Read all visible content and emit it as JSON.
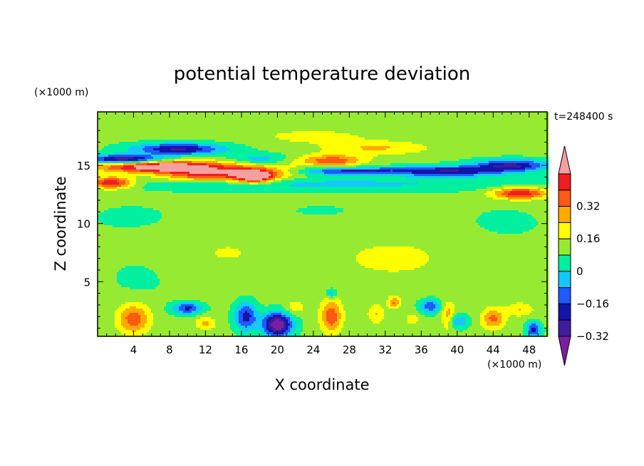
{
  "chart_data": {
    "type": "heatmap",
    "title": "potential temperature deviation",
    "xlabel": "X coordinate",
    "ylabel": "Z coordinate",
    "x_unit": "(×1000 m)",
    "y_unit": "(×1000 m)",
    "time_label": "t=248400 s",
    "xlim": [
      0,
      50
    ],
    "ylim": [
      0.3,
      19.6
    ],
    "x_ticks": [
      4,
      8,
      12,
      16,
      20,
      24,
      28,
      32,
      36,
      40,
      44,
      48
    ],
    "y_ticks": [
      5,
      10,
      15
    ],
    "colorbar": {
      "ticks": [
        "0.32",
        "0.16",
        "0",
        "−0.16",
        "−0.32"
      ],
      "levels": [
        {
          "color": "#7b1fa2"
        },
        {
          "color": "#3f1d9e"
        },
        {
          "color": "#1414a8"
        },
        {
          "color": "#1e5aff"
        },
        {
          "color": "#14c8ff"
        },
        {
          "color": "#00f0a0"
        },
        {
          "color": "#96eb32"
        },
        {
          "color": "#ffff00"
        },
        {
          "color": "#ffaa00"
        },
        {
          "color": "#ff5a14"
        },
        {
          "color": "#f01e1e"
        },
        {
          "color": "#f5a0a0"
        }
      ]
    },
    "background": 0.02,
    "features": [
      {
        "x": 7,
        "z": 14.9,
        "sx": 7,
        "sz": 0.5,
        "v": 0.5
      },
      {
        "x": 1.5,
        "z": 13.5,
        "sx": 2.5,
        "sz": 0.5,
        "v": 0.4
      },
      {
        "x": 12,
        "z": 14.2,
        "sx": 5,
        "sz": 0.6,
        "v": 0.3
      },
      {
        "x": 17.5,
        "z": 14.0,
        "sx": 2,
        "sz": 0.5,
        "v": 0.42
      },
      {
        "x": 18,
        "z": 14.4,
        "sx": 4.5,
        "sz": 0.7,
        "v": 0.22
      },
      {
        "x": 26,
        "z": 15.4,
        "sx": 3.5,
        "sz": 0.5,
        "v": 0.28
      },
      {
        "x": 31,
        "z": 16.5,
        "sx": 6,
        "sz": 0.6,
        "v": 0.15
      },
      {
        "x": 24,
        "z": 17.5,
        "sx": 6,
        "sz": 0.6,
        "v": 0.1
      },
      {
        "x": 47,
        "z": 12.6,
        "sx": 3,
        "sz": 0.5,
        "v": 0.38
      },
      {
        "x": 3,
        "z": 15.5,
        "sx": 4,
        "sz": 0.4,
        "v": -0.45
      },
      {
        "x": 9,
        "z": 16.4,
        "sx": 5,
        "sz": 0.5,
        "v": -0.35
      },
      {
        "x": 18,
        "z": 15.5,
        "sx": 3,
        "sz": 0.5,
        "v": -0.15
      },
      {
        "x": 28,
        "z": 14.5,
        "sx": 6,
        "sz": 0.35,
        "v": -0.28
      },
      {
        "x": 39,
        "z": 14.5,
        "sx": 6,
        "sz": 0.45,
        "v": -0.33
      },
      {
        "x": 46,
        "z": 15.0,
        "sx": 4,
        "sz": 0.5,
        "v": -0.35
      },
      {
        "x": 25,
        "z": 13.4,
        "sx": 25,
        "sz": 0.6,
        "v": -0.12
      },
      {
        "x": 20,
        "z": 1.3,
        "sx": 1.6,
        "sz": 1.0,
        "v": -0.5
      },
      {
        "x": 16.5,
        "z": 2.0,
        "sx": 1.2,
        "sz": 1.2,
        "v": -0.3
      },
      {
        "x": 10,
        "z": 2.7,
        "sx": 1.6,
        "sz": 0.5,
        "v": -0.28
      },
      {
        "x": 37,
        "z": 2.9,
        "sx": 1.2,
        "sz": 0.6,
        "v": -0.25
      },
      {
        "x": 48.5,
        "z": 0.9,
        "sx": 0.8,
        "sz": 0.6,
        "v": -0.3
      },
      {
        "x": 40,
        "z": 1.6,
        "sx": 1.2,
        "sz": 0.6,
        "v": -0.2
      },
      {
        "x": 26,
        "z": 4.0,
        "sx": 0.6,
        "sz": 0.4,
        "v": -0.18
      },
      {
        "x": 4,
        "z": 1.8,
        "sx": 1.8,
        "sz": 1.3,
        "v": 0.27
      },
      {
        "x": 26,
        "z": 2.0,
        "sx": 1.2,
        "sz": 1.4,
        "v": 0.28
      },
      {
        "x": 44,
        "z": 1.8,
        "sx": 1.3,
        "sz": 0.9,
        "v": 0.24
      },
      {
        "x": 39,
        "z": 2.0,
        "sx": 0.8,
        "sz": 1.2,
        "v": 0.2
      },
      {
        "x": 12,
        "z": 1.4,
        "sx": 1.2,
        "sz": 0.6,
        "v": 0.15
      },
      {
        "x": 31,
        "z": 2.2,
        "sx": 1.0,
        "sz": 0.8,
        "v": 0.14
      },
      {
        "x": 22,
        "z": 2.8,
        "sx": 1.0,
        "sz": 0.6,
        "v": 0.12
      },
      {
        "x": 47,
        "z": 2.6,
        "sx": 1.5,
        "sz": 0.6,
        "v": 0.14
      },
      {
        "x": 33,
        "z": 3.2,
        "sx": 0.7,
        "sz": 0.5,
        "v": 0.22
      },
      {
        "x": 35,
        "z": 1.8,
        "sx": 0.8,
        "sz": 0.6,
        "v": 0.1
      },
      {
        "x": 14,
        "z": 7.5,
        "sx": 8,
        "sz": 2.5,
        "v": 0.06
      },
      {
        "x": 33,
        "z": 7.0,
        "sx": 10,
        "sz": 2.8,
        "v": 0.07
      },
      {
        "x": 4,
        "z": 10.5,
        "sx": 5,
        "sz": 1.2,
        "v": -0.04
      },
      {
        "x": 45,
        "z": 10.0,
        "sx": 5,
        "sz": 1.5,
        "v": -0.04
      },
      {
        "x": 5,
        "z": 5.5,
        "sx": 4,
        "sz": 2,
        "v": -0.04
      },
      {
        "x": 25,
        "z": 11.0,
        "sx": 7,
        "sz": 1.0,
        "v": -0.03
      }
    ]
  }
}
